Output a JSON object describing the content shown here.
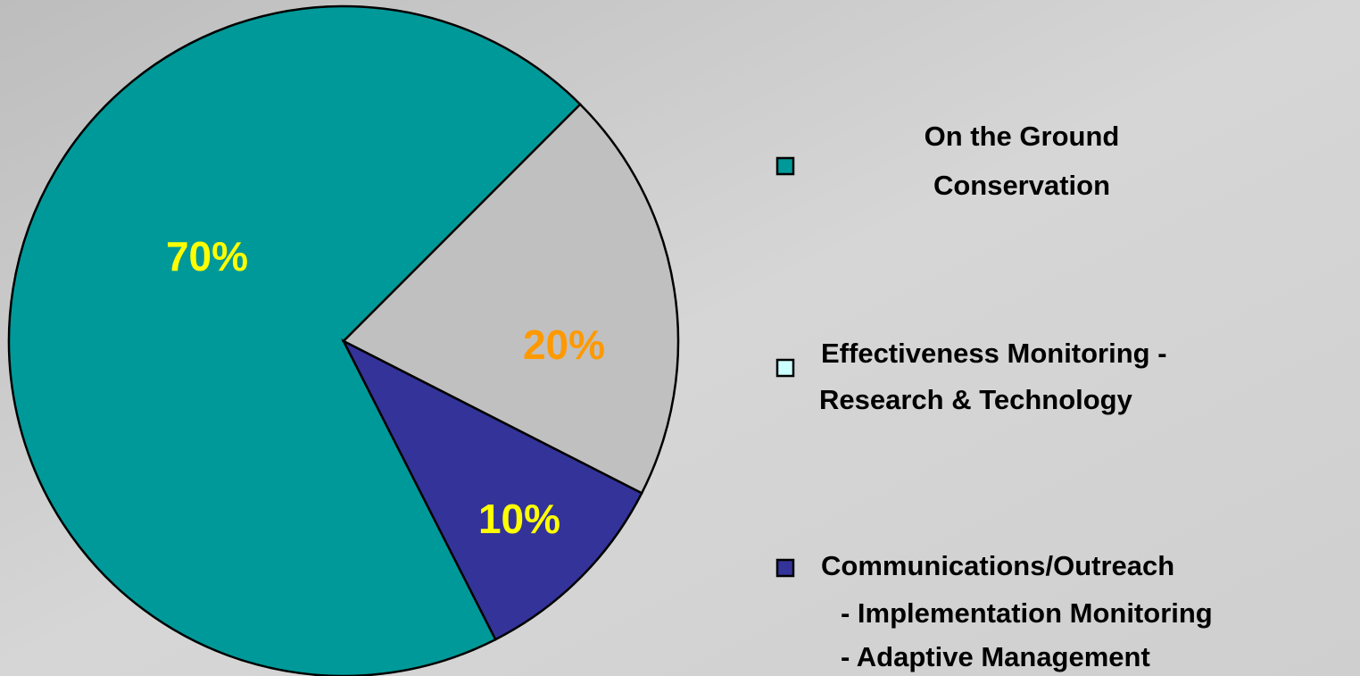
{
  "chart_data": {
    "type": "pie",
    "categories": [
      [
        "On the Ground",
        "Conservation"
      ],
      [
        "Effectiveness Monitoring -",
        "Research & Technology"
      ],
      [
        "Communications/Outreach",
        "- Implementation Monitoring",
        "- Adaptive Management"
      ]
    ],
    "values": [
      70,
      20,
      10
    ],
    "value_labels": [
      "70%",
      "20%",
      "10%"
    ],
    "colors": [
      "#009999",
      "#c0c0c0",
      "#333399"
    ],
    "legend_colors": [
      "#009999",
      "#ccffff",
      "#333399"
    ],
    "label_colors": [
      "#ffff00",
      "#ff9900",
      "#ffff00"
    ]
  }
}
